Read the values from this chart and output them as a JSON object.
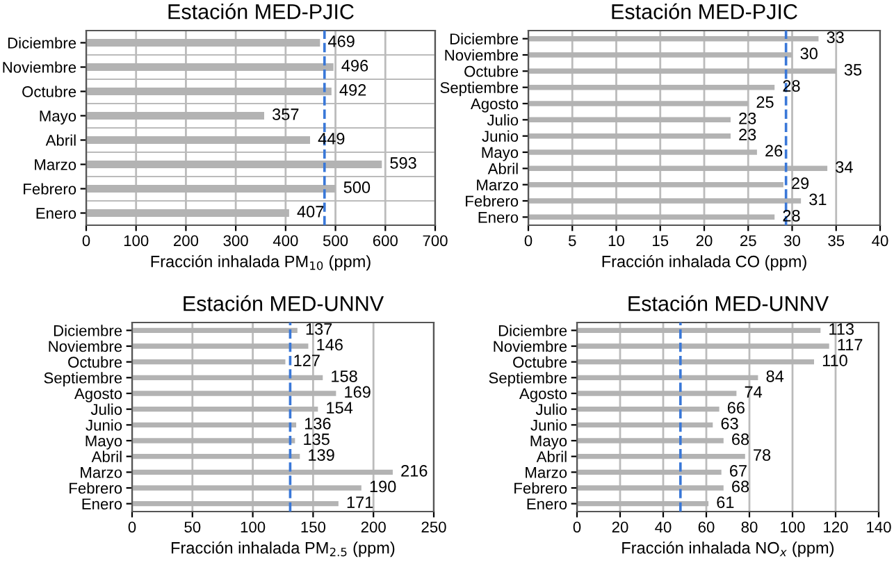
{
  "chart_data": [
    {
      "type": "bar",
      "orientation": "horizontal",
      "title": "Estación MED-PJIC",
      "xlabel": "Fracción inhalada PM$_{10}$ (ppm)",
      "categories": [
        "Diciembre",
        "Noviembre",
        "Octubre",
        "Mayo",
        "Abril",
        "Marzo",
        "Febrero",
        "Enero"
      ],
      "values": [
        469,
        496,
        492,
        357,
        449,
        593,
        500,
        407
      ],
      "color": "#b3b3b3",
      "xlim": [
        0,
        700
      ],
      "xticks": [
        0,
        100,
        200,
        300,
        400,
        500,
        600,
        700
      ],
      "grid": true,
      "data_labels": true,
      "ref_lines": [
        {
          "axis": "x",
          "value": 478,
          "color": "#3a78d8",
          "line_style": "dashed"
        }
      ]
    },
    {
      "type": "bar",
      "orientation": "horizontal",
      "title": "Estación MED-PJIC",
      "xlabel": "Fracción inhalada CO (ppm)",
      "categories": [
        "Diciembre",
        "Noviembre",
        "Octubre",
        "Septiembre",
        "Agosto",
        "Julio",
        "Junio",
        "Mayo",
        "Abril",
        "Marzo",
        "Febrero",
        "Enero"
      ],
      "values": [
        33,
        30,
        35,
        28,
        25,
        23,
        23,
        26,
        34,
        29,
        31,
        28
      ],
      "color": "#b3b3b3",
      "xlim": [
        0,
        40
      ],
      "xticks": [
        0,
        5,
        10,
        15,
        20,
        25,
        30,
        35,
        40
      ],
      "grid": "x",
      "data_labels": true,
      "ref_lines": [
        {
          "axis": "x",
          "value": 29.3,
          "color": "#3a78d8",
          "line_style": "dashed"
        }
      ]
    },
    {
      "type": "bar",
      "orientation": "horizontal",
      "title": "Estación MED-UNNV",
      "xlabel": "Fracción inhalada PM$_{2.5}$ (ppm)",
      "categories": [
        "Diciembre",
        "Noviembre",
        "Octubre",
        "Septiembre",
        "Agosto",
        "Julio",
        "Junio",
        "Mayo",
        "Abril",
        "Marzo",
        "Febrero",
        "Enero"
      ],
      "values": [
        137,
        146,
        127,
        158,
        169,
        154,
        136,
        135,
        139,
        216,
        190,
        171
      ],
      "color": "#b3b3b3",
      "xlim": [
        0,
        250
      ],
      "xticks": [
        0,
        50,
        100,
        150,
        200,
        250
      ],
      "grid": "x",
      "data_labels": true,
      "ref_lines": [
        {
          "axis": "x",
          "value": 131,
          "color": "#3a78d8",
          "line_style": "dashed"
        }
      ]
    },
    {
      "type": "bar",
      "orientation": "horizontal",
      "title": "Estación MED-UNNV",
      "xlabel": "Fracción inhalada NO$_{x}$ (ppm)",
      "categories": [
        "Diciembre",
        "Noviembre",
        "Octubre",
        "Septiembre",
        "Agosto",
        "Julio",
        "Junio",
        "Mayo",
        "Abril",
        "Marzo",
        "Febrero",
        "Enero"
      ],
      "values": [
        113,
        117,
        110,
        84,
        74,
        66,
        63,
        68,
        78,
        67,
        68,
        61
      ],
      "color": "#b3b3b3",
      "xlim": [
        0,
        140
      ],
      "xticks": [
        0,
        20,
        40,
        60,
        80,
        100,
        120,
        140
      ],
      "grid": "x",
      "data_labels": true,
      "ref_lines": [
        {
          "axis": "x",
          "value": 48,
          "color": "#3a78d8",
          "line_style": "dashed"
        }
      ]
    }
  ]
}
